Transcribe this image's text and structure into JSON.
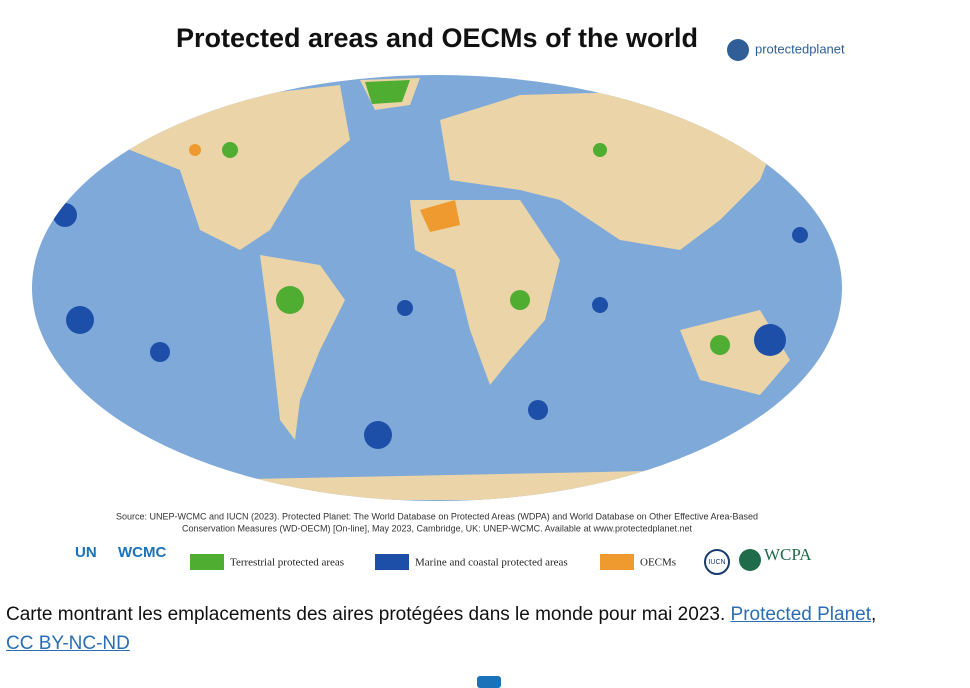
{
  "header": {
    "title": "Protected areas and OECMs of the world",
    "logo_text": "protectedplanet"
  },
  "source": [
    "Source: UNEP-WCMC and IUCN (2023). Protected Planet: The World Database on Protected Areas (WDPA) and World Database on Other Effective Area-Based",
    "Conservation Measures (WD-OECM) [On-line], May 2023, Cambridge, UK: UNEP-WCMC. Available at www.protectedplanet.net"
  ],
  "legend": [
    {
      "label": "Terrestrial protected areas",
      "color": "#4fad32"
    },
    {
      "label": "Marine and coastal protected areas",
      "color": "#1d4fa8"
    },
    {
      "label": "OECMs",
      "color": "#ee9a2e"
    }
  ],
  "logos": {
    "un": "UN",
    "wcmc": "WCMC",
    "iucn": "IUCN",
    "wcpa": "WCPA"
  },
  "caption": {
    "text": "Carte montrant les emplacements des aires protégées dans le monde pour mai 2023. ",
    "link1": "Protected Planet",
    "separator": ",",
    "link2": "CC BY-NC-ND"
  }
}
